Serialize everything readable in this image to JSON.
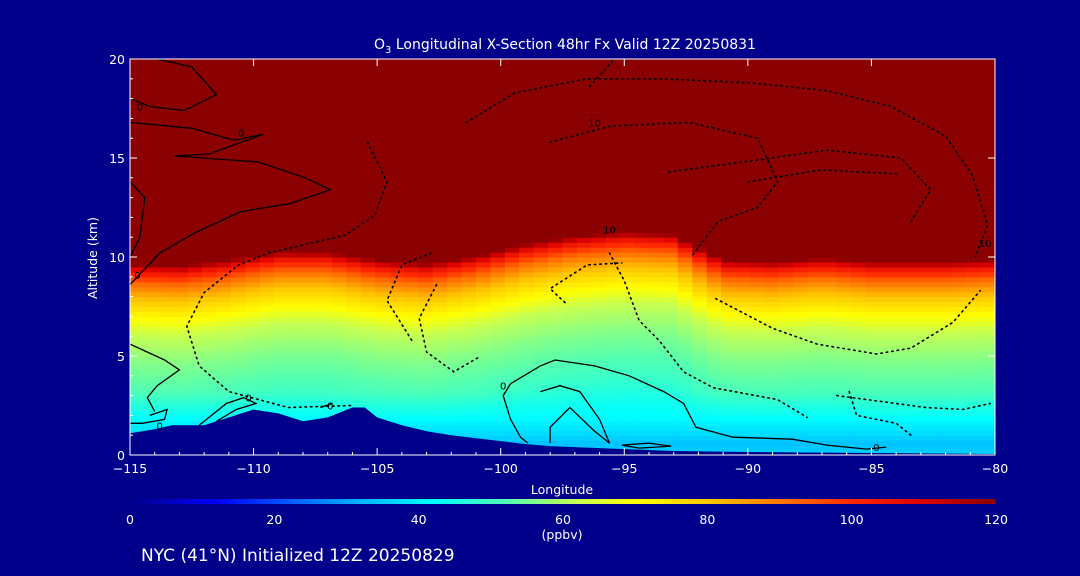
{
  "background_color": "#00008b",
  "chart_data": {
    "type": "heatmap",
    "title": {
      "species_base": "O",
      "species_sub": "3",
      "rest": " Longitudinal X-Section 48hr  Fx Valid 12Z 20250831"
    },
    "xlabel": "Longitude",
    "ylabel": "Altitude (km)",
    "xlim": [
      -115,
      -80
    ],
    "ylim": [
      0,
      20
    ],
    "xticks": [
      -115,
      -110,
      -105,
      -100,
      -95,
      -90,
      -85,
      -80
    ],
    "xtick_labels": [
      "−115",
      "−110",
      "−105",
      "−100",
      "−95",
      "−90",
      "−85",
      "−80"
    ],
    "yticks": [
      0,
      5,
      10,
      15,
      20
    ],
    "ytick_labels": [
      "0",
      "5",
      "10",
      "15",
      "20"
    ],
    "colorbar": {
      "label": "(ppbv)",
      "range": [
        0,
        120
      ],
      "ticks": [
        0,
        20,
        40,
        60,
        80,
        100,
        120
      ],
      "tick_labels": [
        "0",
        "20",
        "40",
        "60",
        "80",
        "100",
        "120"
      ]
    },
    "terrain_profile": [
      [
        -115,
        1.1
      ],
      [
        -114,
        1.3
      ],
      [
        -113.3,
        1.5
      ],
      [
        -112,
        1.5
      ],
      [
        -111,
        1.9
      ],
      [
        -110,
        2.3
      ],
      [
        -109,
        2.1
      ],
      [
        -108,
        1.7
      ],
      [
        -107,
        1.9
      ],
      [
        -106,
        2.4
      ],
      [
        -105.5,
        2.4
      ],
      [
        -105,
        1.9
      ],
      [
        -104,
        1.5
      ],
      [
        -103,
        1.2
      ],
      [
        -102,
        1.0
      ],
      [
        -101,
        0.85
      ],
      [
        -100,
        0.7
      ],
      [
        -99,
        0.55
      ],
      [
        -98,
        0.45
      ],
      [
        -97,
        0.4
      ],
      [
        -95,
        0.3
      ],
      [
        -93,
        0.2
      ],
      [
        -90,
        0.15
      ],
      [
        -85,
        0.1
      ],
      [
        -80,
        0.05
      ]
    ],
    "ozone_field": {
      "tropopause_km": [
        [
          -115,
          9.6
        ],
        [
          -113,
          9.5
        ],
        [
          -111,
          9.8
        ],
        [
          -109,
          10.2
        ],
        [
          -107,
          10.2
        ],
        [
          -105,
          9.8
        ],
        [
          -103,
          9.6
        ],
        [
          -101,
          10.0
        ],
        [
          -99,
          10.6
        ],
        [
          -97,
          11.0
        ],
        [
          -95,
          11.2
        ],
        [
          -93,
          11.1
        ],
        [
          -92,
          10.4
        ],
        [
          -91,
          9.8
        ],
        [
          -89,
          9.7
        ],
        [
          -87,
          9.9
        ],
        [
          -85,
          9.7
        ],
        [
          -82,
          9.7
        ],
        [
          -80,
          9.8
        ]
      ],
      "profile_ppbv_by_height_above_tropopause_km": [
        [
          -11,
          38
        ],
        [
          -9,
          42
        ],
        [
          -7,
          50
        ],
        [
          -5,
          56
        ],
        [
          -3.5,
          62
        ],
        [
          -2.5,
          72
        ],
        [
          -1.6,
          82
        ],
        [
          -0.9,
          92
        ],
        [
          -0.3,
          105
        ],
        [
          0.2,
          125
        ]
      ],
      "boundary_layer_ppbv": [
        [
          0.0,
          36
        ],
        [
          0.6,
          34
        ],
        [
          1.2,
          38
        ],
        [
          2.0,
          42
        ],
        [
          3.0,
          44
        ]
      ]
    },
    "contour_labels": [
      {
        "text": "0",
        "lon": -114.6,
        "alt": 17.6
      },
      {
        "text": "0",
        "lon": -110.5,
        "alt": 16.3
      },
      {
        "text": "0",
        "lon": -114.7,
        "alt": 9.1
      },
      {
        "text": "0",
        "lon": -113.8,
        "alt": 1.5
      },
      {
        "text": "0",
        "lon": -110.2,
        "alt": 2.9
      },
      {
        "text": "0",
        "lon": -106.9,
        "alt": 2.5
      },
      {
        "text": "0",
        "lon": -99.9,
        "alt": 3.5
      },
      {
        "text": "0",
        "lon": -84.8,
        "alt": 0.4
      },
      {
        "text": "10",
        "lon": -96.2,
        "alt": 16.8
      },
      {
        "text": "10",
        "lon": -95.6,
        "alt": 11.4
      },
      {
        "text": "10",
        "lon": -80.4,
        "alt": 10.7
      }
    ]
  },
  "footer": {
    "text": "NYC (41°N) Initialized 12Z 20250829"
  }
}
